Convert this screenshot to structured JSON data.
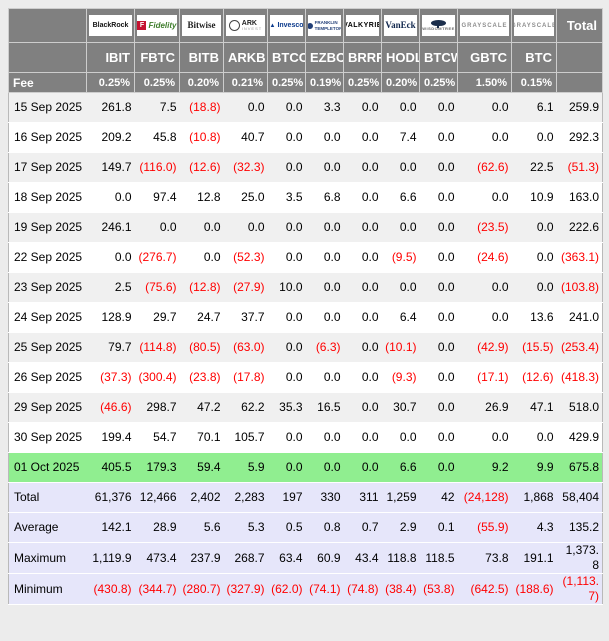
{
  "colors": {
    "header_bg": "#808080",
    "header_text": "#ffffff",
    "row_alt_bg": "#f0f0f0",
    "highlight_row_bg": "#90EE90",
    "summary_row_bg": "#E6E6FA",
    "negative_value": "#ff0000",
    "positive_value": "#000000"
  },
  "chart_data": {
    "type": "table",
    "header": {
      "fee_label": "Fee",
      "total_label": "Total",
      "providers": [
        {
          "issuer": "BlackRock",
          "ticker": "IBIT",
          "fee": "0.25%"
        },
        {
          "issuer": "Fidelity",
          "ticker": "FBTC",
          "fee": "0.25%"
        },
        {
          "issuer": "Bitwise",
          "ticker": "BITB",
          "fee": "0.20%"
        },
        {
          "issuer": "ARK Invest",
          "ticker": "ARKB",
          "fee": "0.21%"
        },
        {
          "issuer": "Invesco",
          "ticker": "BTCO",
          "fee": "0.25%"
        },
        {
          "issuer": "Franklin Templeton",
          "ticker": "EZBC",
          "fee": "0.19%"
        },
        {
          "issuer": "Valkyrie",
          "ticker": "BRRR",
          "fee": "0.25%"
        },
        {
          "issuer": "VanEck",
          "ticker": "HODL",
          "fee": "0.20%"
        },
        {
          "issuer": "WisdomTree",
          "ticker": "BTCW",
          "fee": "0.25%"
        },
        {
          "issuer": "Grayscale",
          "ticker": "GBTC",
          "fee": "1.50%"
        },
        {
          "issuer": "Grayscale",
          "ticker": "BTC",
          "fee": "0.15%"
        }
      ]
    },
    "rows": [
      {
        "label": "15 Sep 2025",
        "highlight": false,
        "values": [
          "261.8",
          "7.5",
          "(18.8)",
          "0.0",
          "0.0",
          "3.3",
          "0.0",
          "0.0",
          "0.0",
          "0.0",
          "6.1",
          "259.9"
        ]
      },
      {
        "label": "16 Sep 2025",
        "highlight": false,
        "values": [
          "209.2",
          "45.8",
          "(10.8)",
          "40.7",
          "0.0",
          "0.0",
          "0.0",
          "7.4",
          "0.0",
          "0.0",
          "0.0",
          "292.3"
        ]
      },
      {
        "label": "17 Sep 2025",
        "highlight": false,
        "values": [
          "149.7",
          "(116.0)",
          "(12.6)",
          "(32.3)",
          "0.0",
          "0.0",
          "0.0",
          "0.0",
          "0.0",
          "(62.6)",
          "22.5",
          "(51.3)"
        ]
      },
      {
        "label": "18 Sep 2025",
        "highlight": false,
        "values": [
          "0.0",
          "97.4",
          "12.8",
          "25.0",
          "3.5",
          "6.8",
          "0.0",
          "6.6",
          "0.0",
          "0.0",
          "10.9",
          "163.0"
        ]
      },
      {
        "label": "19 Sep 2025",
        "highlight": false,
        "values": [
          "246.1",
          "0.0",
          "0.0",
          "0.0",
          "0.0",
          "0.0",
          "0.0",
          "0.0",
          "0.0",
          "(23.5)",
          "0.0",
          "222.6"
        ]
      },
      {
        "label": "22 Sep 2025",
        "highlight": false,
        "values": [
          "0.0",
          "(276.7)",
          "0.0",
          "(52.3)",
          "0.0",
          "0.0",
          "0.0",
          "(9.5)",
          "0.0",
          "(24.6)",
          "0.0",
          "(363.1)"
        ]
      },
      {
        "label": "23 Sep 2025",
        "highlight": false,
        "values": [
          "2.5",
          "(75.6)",
          "(12.8)",
          "(27.9)",
          "10.0",
          "0.0",
          "0.0",
          "0.0",
          "0.0",
          "0.0",
          "0.0",
          "(103.8)"
        ]
      },
      {
        "label": "24 Sep 2025",
        "highlight": false,
        "values": [
          "128.9",
          "29.7",
          "24.7",
          "37.7",
          "0.0",
          "0.0",
          "0.0",
          "6.4",
          "0.0",
          "0.0",
          "13.6",
          "241.0"
        ]
      },
      {
        "label": "25 Sep 2025",
        "highlight": false,
        "values": [
          "79.7",
          "(114.8)",
          "(80.5)",
          "(63.0)",
          "0.0",
          "(6.3)",
          "0.0",
          "(10.1)",
          "0.0",
          "(42.9)",
          "(15.5)",
          "(253.4)"
        ]
      },
      {
        "label": "26 Sep 2025",
        "highlight": false,
        "values": [
          "(37.3)",
          "(300.4)",
          "(23.8)",
          "(17.8)",
          "0.0",
          "0.0",
          "0.0",
          "(9.3)",
          "0.0",
          "(17.1)",
          "(12.6)",
          "(418.3)"
        ]
      },
      {
        "label": "29 Sep 2025",
        "highlight": false,
        "values": [
          "(46.6)",
          "298.7",
          "47.2",
          "62.2",
          "35.3",
          "16.5",
          "0.0",
          "30.7",
          "0.0",
          "26.9",
          "47.1",
          "518.0"
        ]
      },
      {
        "label": "30 Sep 2025",
        "highlight": false,
        "values": [
          "199.4",
          "54.7",
          "70.1",
          "105.7",
          "0.0",
          "0.0",
          "0.0",
          "0.0",
          "0.0",
          "0.0",
          "0.0",
          "429.9"
        ]
      },
      {
        "label": "01 Oct 2025",
        "highlight": true,
        "values": [
          "405.5",
          "179.3",
          "59.4",
          "5.9",
          "0.0",
          "0.0",
          "0.0",
          "6.6",
          "0.0",
          "9.2",
          "9.9",
          "675.8"
        ]
      }
    ],
    "summary": [
      {
        "label": "Total",
        "values": [
          "61,376",
          "12,466",
          "2,402",
          "2,283",
          "197",
          "330",
          "311",
          "1,259",
          "42",
          "(24,128)",
          "1,868",
          "58,404"
        ]
      },
      {
        "label": "Average",
        "values": [
          "142.1",
          "28.9",
          "5.6",
          "5.3",
          "0.5",
          "0.8",
          "0.7",
          "2.9",
          "0.1",
          "(55.9)",
          "4.3",
          "135.2"
        ]
      },
      {
        "label": "Maximum",
        "values": [
          "1,119.9",
          "473.4",
          "237.9",
          "268.7",
          "63.4",
          "60.9",
          "43.4",
          "118.8",
          "118.5",
          "73.8",
          "191.1",
          "1,373.8"
        ]
      },
      {
        "label": "Minimum",
        "values": [
          "(430.8)",
          "(344.7)",
          "(280.7)",
          "(327.9)",
          "(62.0)",
          "(74.1)",
          "(74.8)",
          "(38.4)",
          "(53.8)",
          "(642.5)",
          "(188.6)",
          "(1,113.7)"
        ]
      }
    ]
  }
}
